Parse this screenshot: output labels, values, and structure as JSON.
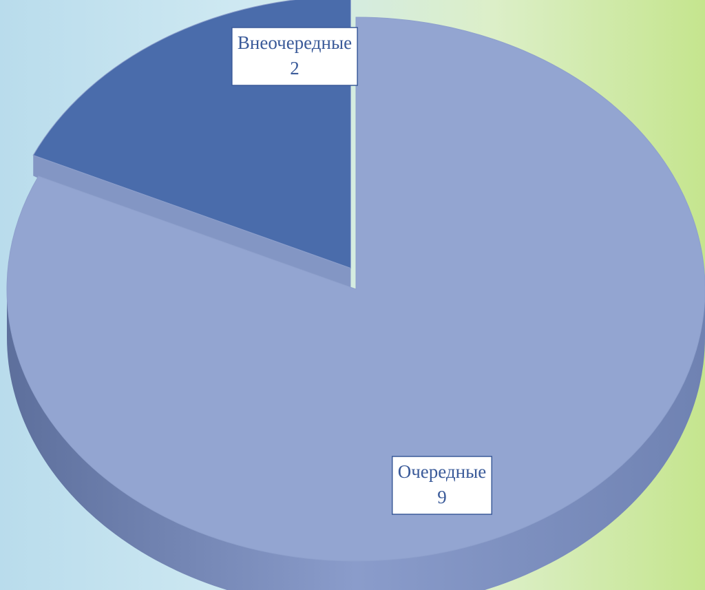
{
  "chart_data": {
    "type": "pie",
    "categories": [
      "Внеочередные",
      "Очередные"
    ],
    "values": [
      2,
      9
    ],
    "colors": [
      "#4a6cab",
      "#93a5d1"
    ]
  }
}
